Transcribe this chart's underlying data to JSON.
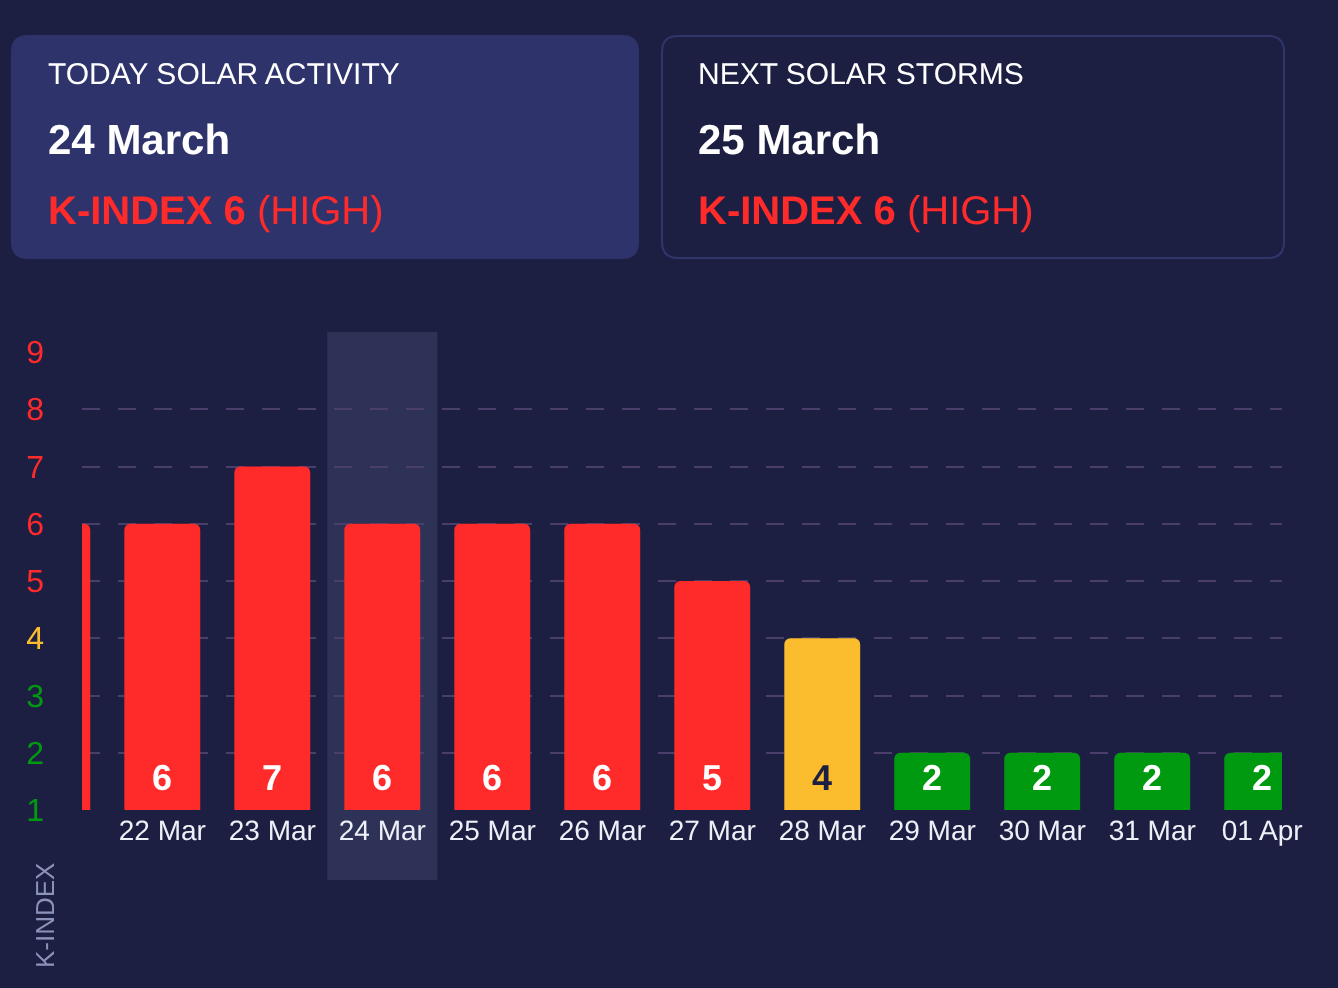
{
  "chart_data": {
    "type": "bar",
    "annotations": [
      "TODAY SOLAR ACTIVITY",
      "24 March",
      "K-INDEX 6",
      "(HIGH)",
      "NEXT SOLAR STORMS",
      "25 March",
      "K-INDEX 6",
      "(HIGH)"
    ],
    "ylabel": "K-INDEX",
    "categories": [
      null,
      "22 Mar",
      "23 Mar",
      "24 Mar",
      "25 Mar",
      "26 Mar",
      "27 Mar",
      "28 Mar",
      "29 Mar",
      "30 Mar",
      "31 Mar",
      "01 Apr"
    ],
    "values": [
      6,
      6,
      7,
      6,
      6,
      6,
      5,
      4,
      2,
      2,
      2,
      2
    ],
    "colors": [
      "#ff2a2a",
      "#ff2a2a",
      "#ff2a2a",
      "#ff2a2a",
      "#ff2a2a",
      "#ff2a2a",
      "#ff2a2a",
      "#fbbd2e",
      "#009a11",
      "#009a11",
      "#009a11",
      "#009a11"
    ],
    "value_labels": [
      null,
      "6",
      "7",
      "6",
      "6",
      "6",
      "5",
      "4",
      "2",
      "2",
      "2",
      "2"
    ],
    "ylim": [
      1,
      9
    ],
    "yticks": [
      1,
      2,
      3,
      4,
      5,
      6,
      7,
      8,
      9
    ],
    "grid": "y",
    "bands": [
      {
        "axis": "x",
        "from": "24 Mar",
        "to": "24 Mar",
        "color": "#2e3257"
      }
    ]
  }
}
